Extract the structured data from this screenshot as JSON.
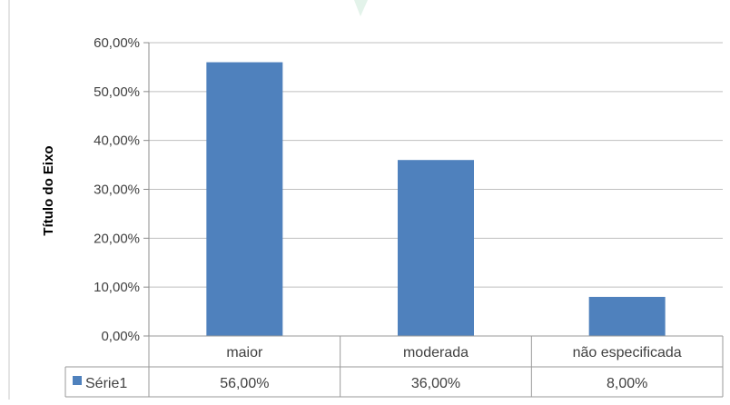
{
  "chart_data": {
    "type": "bar",
    "ylabel": "Título do Eixo",
    "categories": [
      "maior",
      "moderada",
      "não especificada"
    ],
    "series": [
      {
        "name": "Série1",
        "values": [
          0.56,
          0.36,
          0.08
        ],
        "value_labels": [
          "56,00%",
          "36,00%",
          "8,00%"
        ],
        "color": "#4f81bd"
      }
    ],
    "ylim": [
      0,
      0.6
    ],
    "yticks": [
      0,
      0.1,
      0.2,
      0.3,
      0.4,
      0.5,
      0.6
    ],
    "ytick_labels": [
      "0,00%",
      "10,00%",
      "20,00%",
      "30,00%",
      "40,00%",
      "50,00%",
      "60,00%"
    ],
    "grid": true,
    "legend": "data-table-left"
  }
}
